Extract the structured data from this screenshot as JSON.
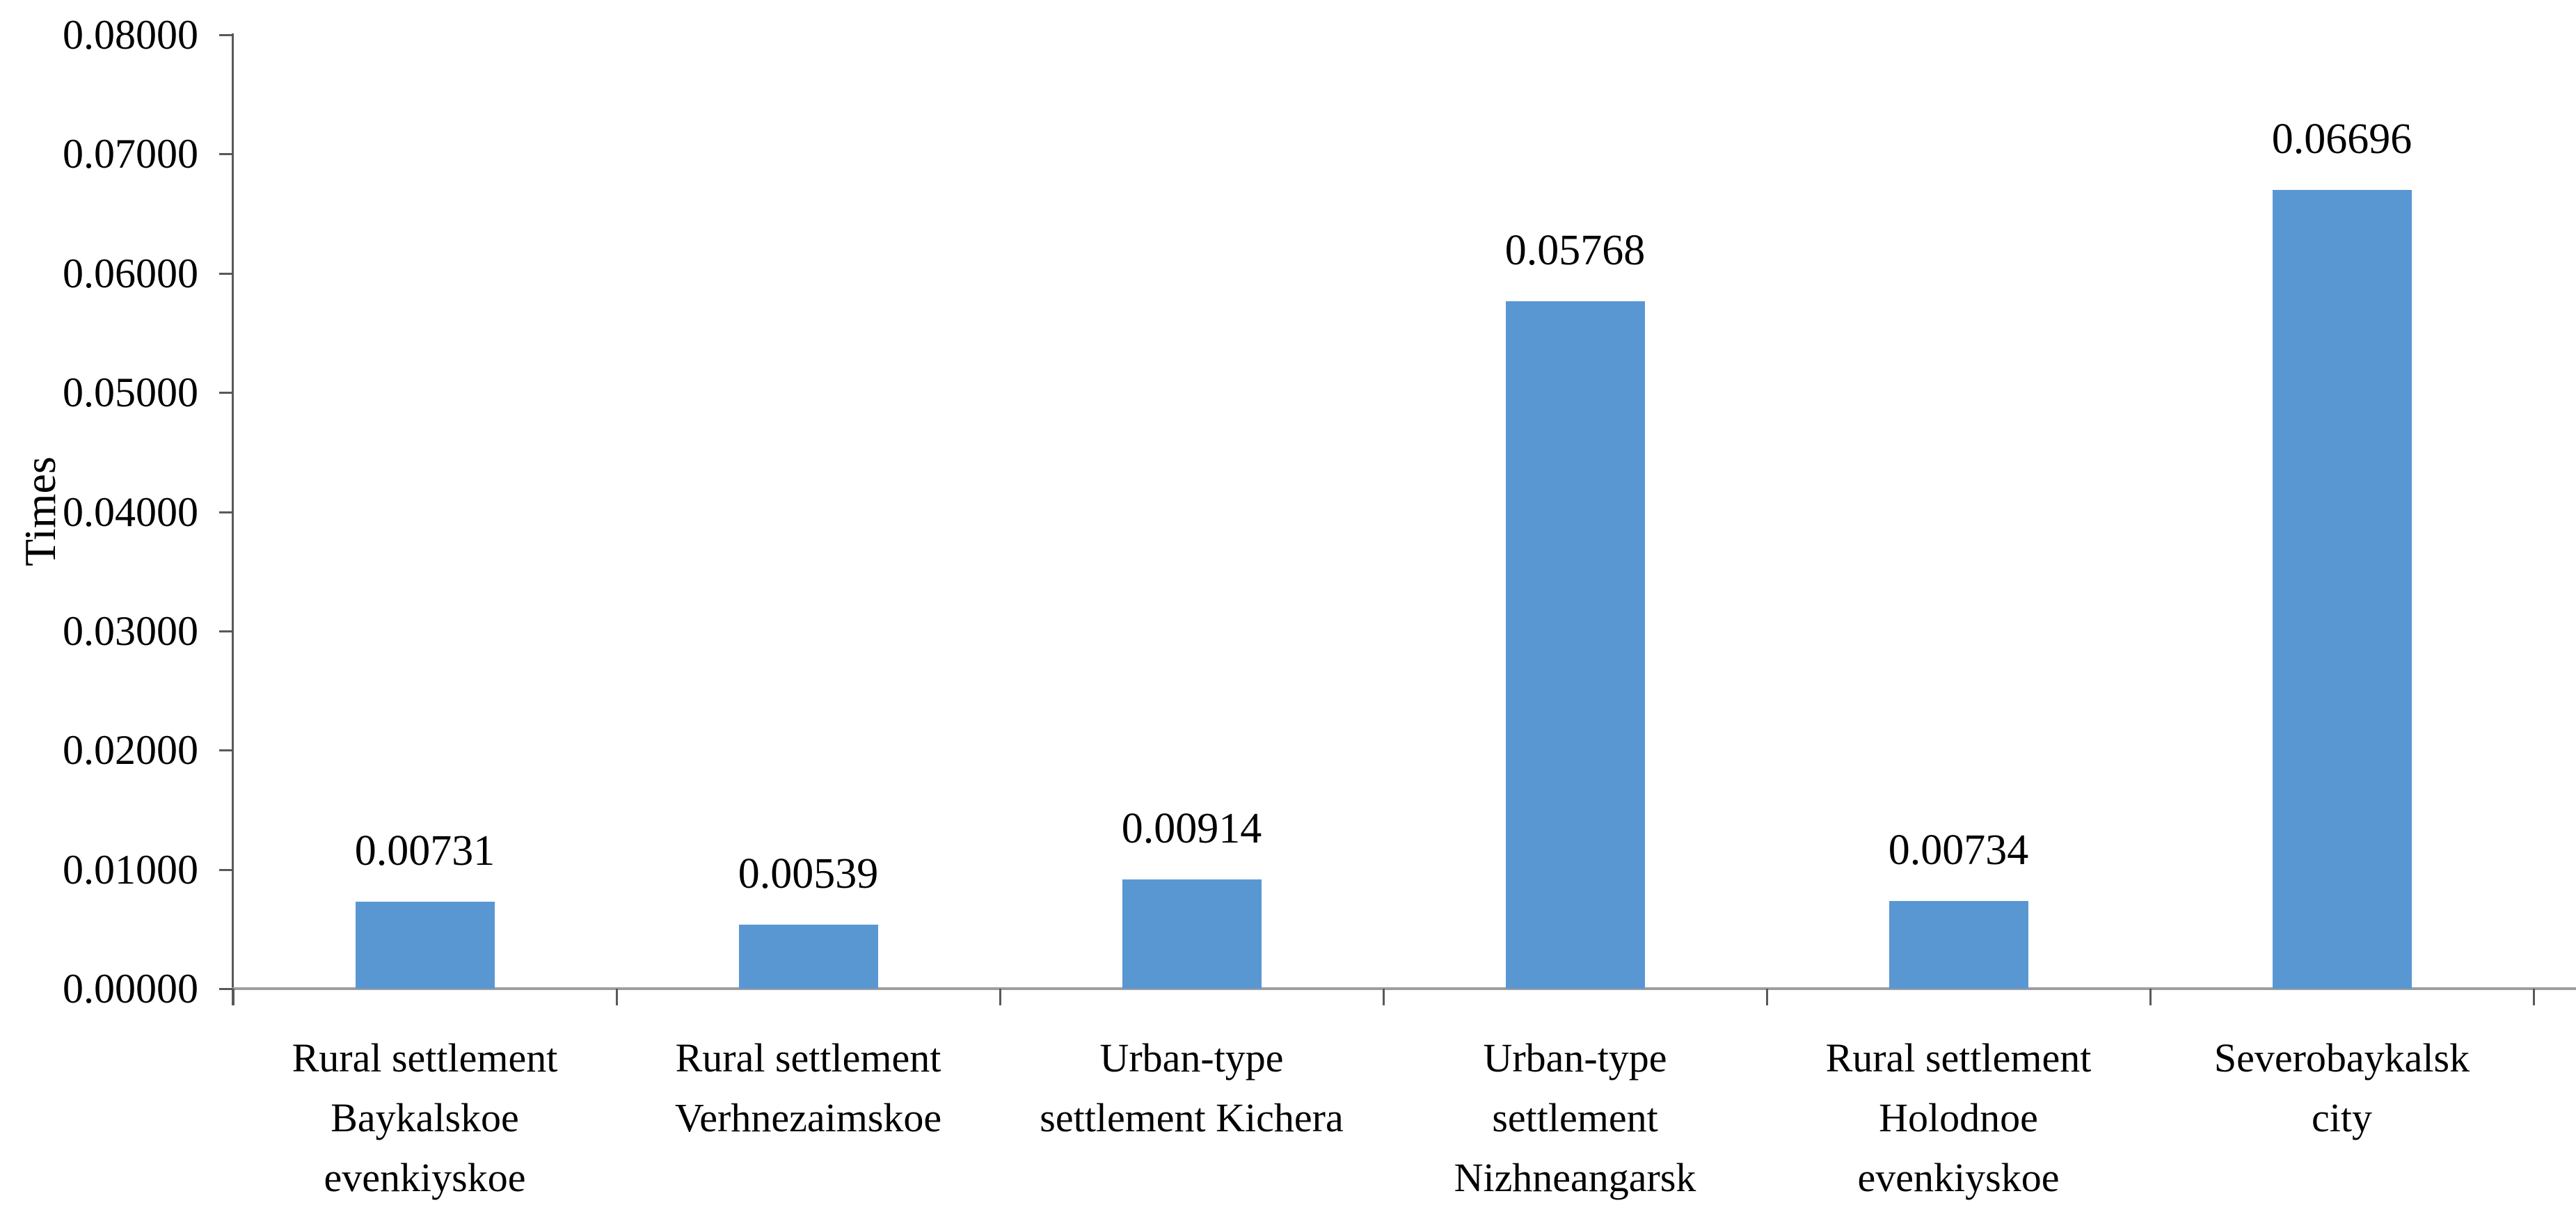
{
  "chart_data": {
    "type": "bar",
    "title": "",
    "xlabel": "",
    "ylabel": "Times",
    "ylim": [
      0,
      0.08
    ],
    "ytick_step": 0.01,
    "ytick_labels": [
      "0.08000",
      "0.07000",
      "0.06000",
      "0.05000",
      "0.04000",
      "0.03000",
      "0.02000",
      "0.01000",
      "0.00000"
    ],
    "categories": [
      "Rural settlement Baykalskoe evenkiyskoe",
      "Rural settlement Verhnezaimskoe",
      "Urban-type settlement Kichera",
      "Urban-type settlement Nizhneangarsk",
      "Rural settlement Holodnoe evenkiyskoe",
      "Severobaykalsk city"
    ],
    "categories_lines": [
      [
        "Rural settlement",
        "Baykalskoe",
        "evenkiyskoe"
      ],
      [
        "Rural settlement",
        "Verhnezaimskoe"
      ],
      [
        "Urban-type",
        "settlement Kichera"
      ],
      [
        "Urban-type",
        "settlement",
        "Nizhneangarsk"
      ],
      [
        "Rural settlement",
        "Holodnoe",
        "evenkiyskoe"
      ],
      [
        "Severobaykalsk",
        "city"
      ]
    ],
    "values": [
      0.00731,
      0.00539,
      0.00914,
      0.05768,
      0.00734,
      0.06696
    ],
    "value_labels": [
      "0.00731",
      "0.00539",
      "0.00914",
      "0.05768",
      "0.00734",
      "0.06696"
    ],
    "bar_color": "#5997D3",
    "axis_tick_color": "#595959",
    "x_axis_line_color": "#9e9e9e",
    "text_color": "#000000",
    "background_color": "#ffffff",
    "gridlines": false,
    "legend": "none"
  }
}
